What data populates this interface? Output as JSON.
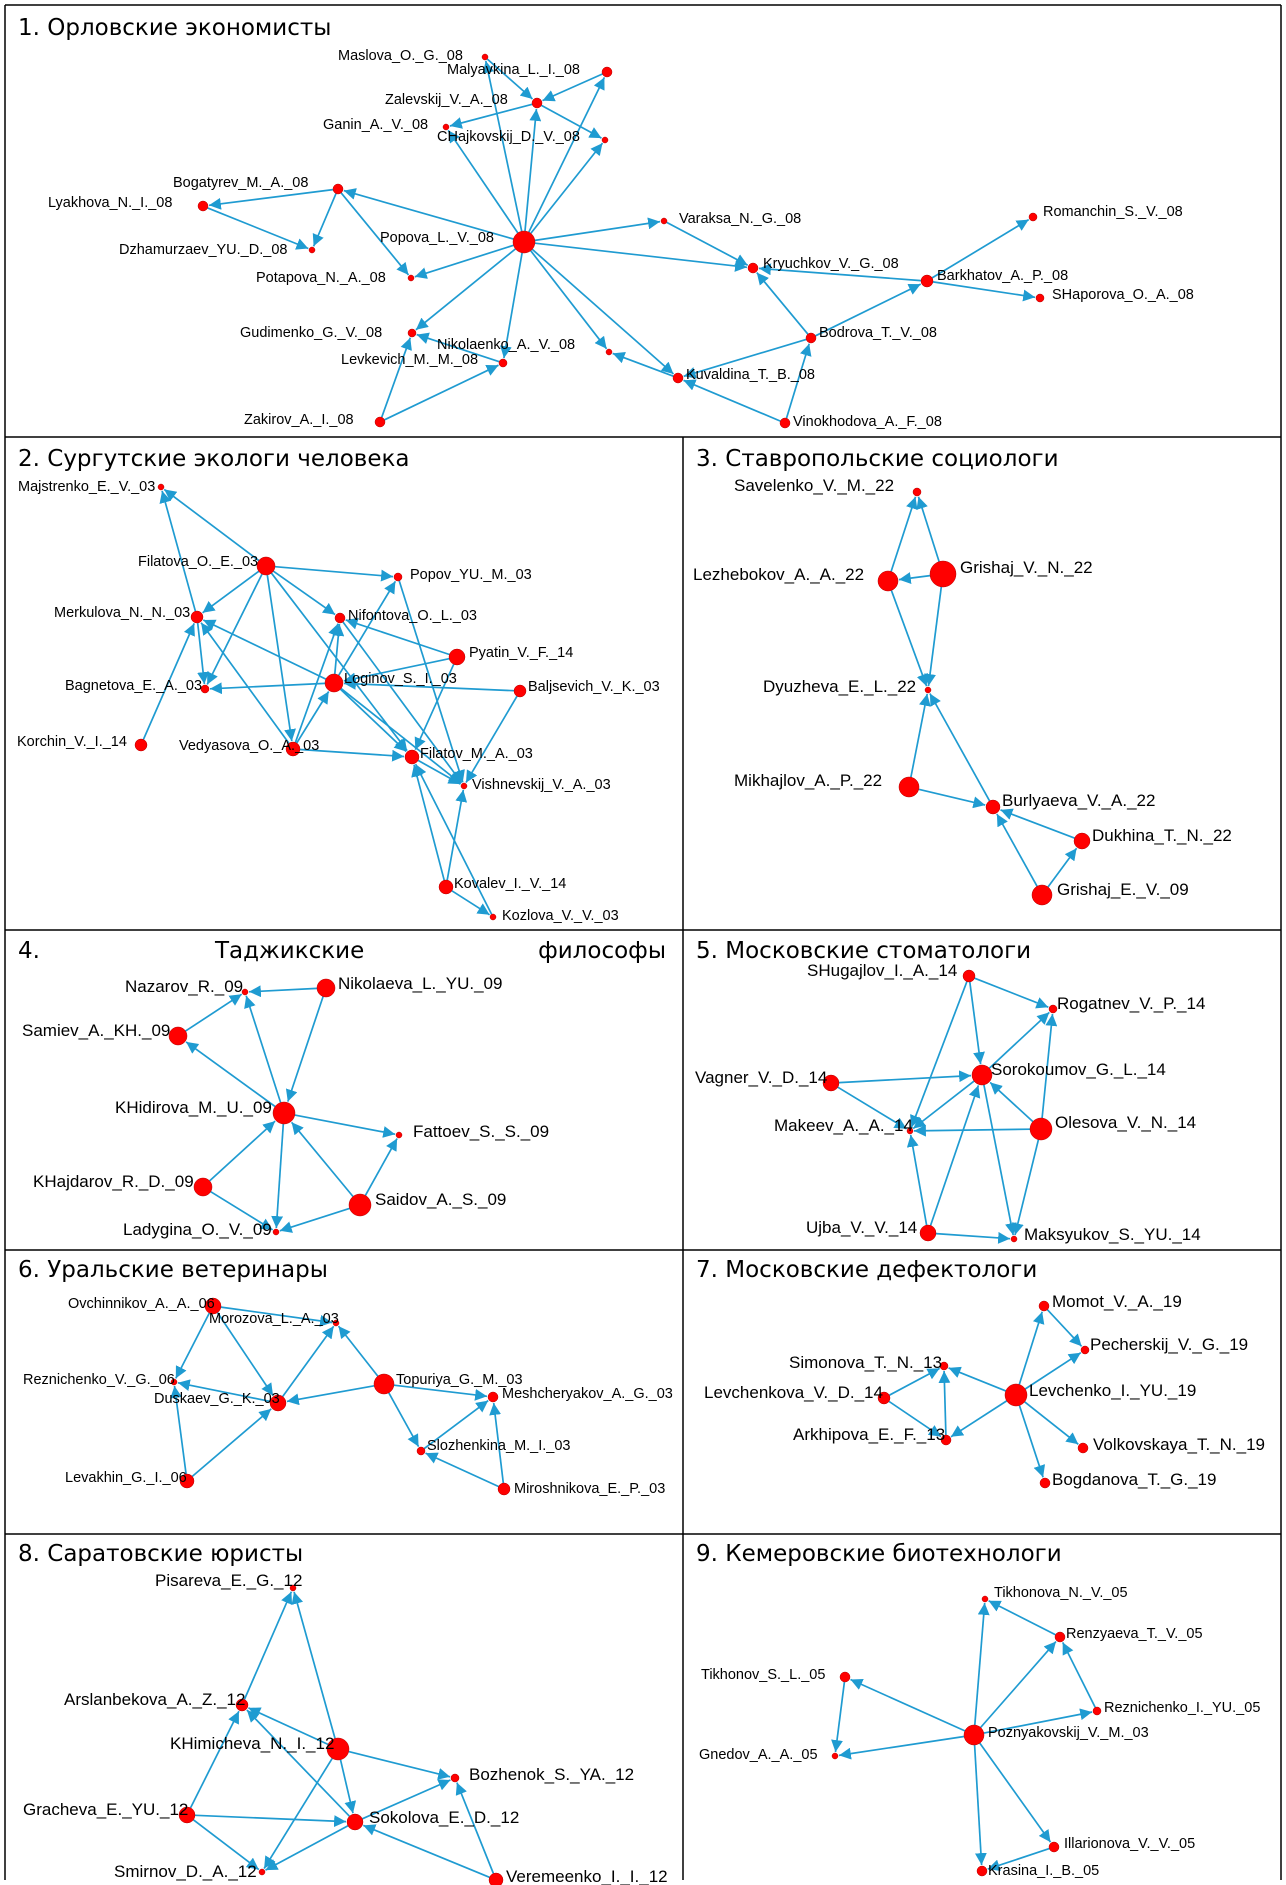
{
  "colors": {
    "edge": "#1f9bd1",
    "node": "#ff0000",
    "frame": "#000000"
  },
  "panels": [
    {
      "title": "1. Орловские экономисты",
      "nodes": [
        {
          "id": "maslova",
          "label": "Maslova_O._G._08"
        },
        {
          "id": "malyavkina",
          "label": "Malyavkina_L._I._08"
        },
        {
          "id": "zalevskij",
          "label": "Zalevskij_V._A._08"
        },
        {
          "id": "ganin",
          "label": "Ganin_A._V._08"
        },
        {
          "id": "chajkovskij",
          "label": "CHajkovskij_D._V._08"
        },
        {
          "id": "bogatyrev",
          "label": "Bogatyrev_M._A._08"
        },
        {
          "id": "lyakhova",
          "label": "Lyakhova_N._I._08"
        },
        {
          "id": "dzhamurzaev",
          "label": "Dzhamurzaev_YU._D._08"
        },
        {
          "id": "popova",
          "label": "Popova_L._V._08"
        },
        {
          "id": "potapova",
          "label": "Potapova_N._A._08"
        },
        {
          "id": "varaksa",
          "label": "Varaksa_N._G._08"
        },
        {
          "id": "romanchin",
          "label": "Romanchin_S._V._08"
        },
        {
          "id": "kryuchkov",
          "label": "Kryuchkov_V._G._08"
        },
        {
          "id": "barkhatov",
          "label": "Barkhatov_A._P._08"
        },
        {
          "id": "shaporova",
          "label": "SHaporova_O._A._08"
        },
        {
          "id": "gudimenko",
          "label": "Gudimenko_G._V._08"
        },
        {
          "id": "nikolaenko",
          "label": "Nikolaenko_A._V._08"
        },
        {
          "id": "bodrova",
          "label": "Bodrova_T._V._08"
        },
        {
          "id": "levkevich",
          "label": "Levkevich_M._M._08"
        },
        {
          "id": "kuvaldina",
          "label": "Kuvaldina_T._B._08"
        },
        {
          "id": "zakirov",
          "label": "Zakirov_A._I._08"
        },
        {
          "id": "vinokhodova",
          "label": "Vinokhodova_A._F._08"
        }
      ]
    },
    {
      "title": "2. Сургутские экологи человека",
      "nodes": [
        {
          "id": "majstrenko",
          "label": "Majstrenko_E._V._03"
        },
        {
          "id": "filatova",
          "label": "Filatova_O._E._03"
        },
        {
          "id": "popov",
          "label": "Popov_YU._M._03"
        },
        {
          "id": "merkulova",
          "label": "Merkulova_N._N._03"
        },
        {
          "id": "nifontova",
          "label": "Nifontova_O._L._03"
        },
        {
          "id": "pyatin",
          "label": "Pyatin_V._F._14"
        },
        {
          "id": "bagnetova",
          "label": "Bagnetova_E._A._03"
        },
        {
          "id": "loginov",
          "label": "Loginov_S._I._03"
        },
        {
          "id": "baljsevich",
          "label": "Baljsevich_V._K._03"
        },
        {
          "id": "korchin",
          "label": "Korchin_V._I._14"
        },
        {
          "id": "vedyasova",
          "label": "Vedyasova_O._A._03"
        },
        {
          "id": "filatov",
          "label": "Filatov_M._A._03"
        },
        {
          "id": "vishnevskij",
          "label": "Vishnevskij_V._A._03"
        },
        {
          "id": "kovalev",
          "label": "Kovalev_I._V._14"
        },
        {
          "id": "kozlova",
          "label": "Kozlova_V._V._03"
        }
      ]
    },
    {
      "title": "3. Ставропольские социологи",
      "nodes": [
        {
          "id": "savelenko",
          "label": "Savelenko_V._M._22"
        },
        {
          "id": "lezhebokov",
          "label": "Lezhebokov_A._A._22"
        },
        {
          "id": "grishajvn",
          "label": "Grishaj_V._N._22"
        },
        {
          "id": "dyuzheva",
          "label": "Dyuzheva_E._L._22"
        },
        {
          "id": "mikhajlov",
          "label": "Mikhajlov_A._P._22"
        },
        {
          "id": "burlyaeva",
          "label": "Burlyaeva_V._A._22"
        },
        {
          "id": "dukhina",
          "label": "Dukhina_T._N._22"
        },
        {
          "id": "grishajev",
          "label": "Grishaj_E._V._09"
        }
      ]
    },
    {
      "title_left": "4.",
      "title_mid": "Таджикские",
      "title_right": "философы",
      "nodes": [
        {
          "id": "nazarov",
          "label": "Nazarov_R._09"
        },
        {
          "id": "nikolaeva",
          "label": "Nikolaeva_L._YU._09"
        },
        {
          "id": "samiev",
          "label": "Samiev_A._KH._09"
        },
        {
          "id": "khidirova",
          "label": "KHidirova_M._U._09"
        },
        {
          "id": "fattoev",
          "label": "Fattoev_S._S._09"
        },
        {
          "id": "khajdarov",
          "label": "KHajdarov_R._D._09"
        },
        {
          "id": "saidov",
          "label": "Saidov_A._S._09"
        },
        {
          "id": "ladygina",
          "label": "Ladygina_O._V._09"
        }
      ]
    },
    {
      "title": "5. Московские стоматологи",
      "nodes": [
        {
          "id": "shugajlov",
          "label": "SHugajlov_I._A._14"
        },
        {
          "id": "rogatnev",
          "label": "Rogatnev_V._P._14"
        },
        {
          "id": "vagner",
          "label": "Vagner_V._D._14"
        },
        {
          "id": "sorokoumov",
          "label": "Sorokoumov_G._L._14"
        },
        {
          "id": "makeev",
          "label": "Makeev_A._A._14"
        },
        {
          "id": "olesova",
          "label": "Olesova_V._N._14"
        },
        {
          "id": "ujba",
          "label": "Ujba_V._V._14"
        },
        {
          "id": "maksyukov",
          "label": "Maksyukov_S._YU._14"
        }
      ]
    },
    {
      "title": "6. Уральские ветеринары",
      "nodes": [
        {
          "id": "ovchinnikov",
          "label": "Ovchinnikov_A._A._06"
        },
        {
          "id": "morozova",
          "label": "Morozova_L._A._03"
        },
        {
          "id": "reznichenkov",
          "label": "Reznichenko_V._G._06"
        },
        {
          "id": "duskaev",
          "label": "Duskaev_G._K._03"
        },
        {
          "id": "topuriya",
          "label": "Topuriya_G._M._03"
        },
        {
          "id": "meshcheryakov",
          "label": "Meshcheryakov_A._G._03"
        },
        {
          "id": "slozhenkina",
          "label": "Slozhenkina_M._I._03"
        },
        {
          "id": "levakhin",
          "label": "Levakhin_G._I._06"
        },
        {
          "id": "miroshnikova",
          "label": "Miroshnikova_E._P._03"
        }
      ]
    },
    {
      "title": "7. Московские дефектологи",
      "nodes": [
        {
          "id": "momot",
          "label": "Momot_V._A._19"
        },
        {
          "id": "pecherskij",
          "label": "Pecherskij_V._G._19"
        },
        {
          "id": "simonova",
          "label": "Simonova_T._N._13"
        },
        {
          "id": "levchenkova",
          "label": "Levchenkova_V._D._14"
        },
        {
          "id": "levchenko",
          "label": "Levchenko_I._YU._19"
        },
        {
          "id": "arkhipova",
          "label": "Arkhipova_E._F._13"
        },
        {
          "id": "volkovskaya",
          "label": "Volkovskaya_T._N._19"
        },
        {
          "id": "bogdanova",
          "label": "Bogdanova_T._G._19"
        }
      ]
    },
    {
      "title": "8. Саратовские юристы",
      "nodes": [
        {
          "id": "pisareva",
          "label": "Pisareva_E._G._12"
        },
        {
          "id": "arslanbekova",
          "label": "Arslanbekova_A._Z._12"
        },
        {
          "id": "khimicheva",
          "label": "KHimicheva_N._I._12"
        },
        {
          "id": "bozhenok",
          "label": "Bozhenok_S._YA._12"
        },
        {
          "id": "gracheva",
          "label": "Gracheva_E._YU._12"
        },
        {
          "id": "sokolova",
          "label": "Sokolova_E._D._12"
        },
        {
          "id": "smirnov",
          "label": "Smirnov_D._A._12"
        },
        {
          "id": "veremeenko",
          "label": "Veremeenko_I._I._12"
        }
      ]
    },
    {
      "title": "9. Кемеровские биотехнологи",
      "nodes": [
        {
          "id": "tikhonova",
          "label": "Tikhonova_N._V._05"
        },
        {
          "id": "renzyaeva",
          "label": "Renzyaeva_T._V._05"
        },
        {
          "id": "tikhonov",
          "label": "Tikhonov_S._L._05"
        },
        {
          "id": "reznichenkoiyu",
          "label": "Reznichenko_I._YU._05"
        },
        {
          "id": "gnedov",
          "label": "Gnedov_A._A._05"
        },
        {
          "id": "poznyakovskij",
          "label": "Poznyakovskij_V._M._03"
        },
        {
          "id": "illarionova",
          "label": "Illarionova_V._V._05"
        },
        {
          "id": "krasina",
          "label": "Krasina_I._B._05"
        }
      ]
    }
  ]
}
